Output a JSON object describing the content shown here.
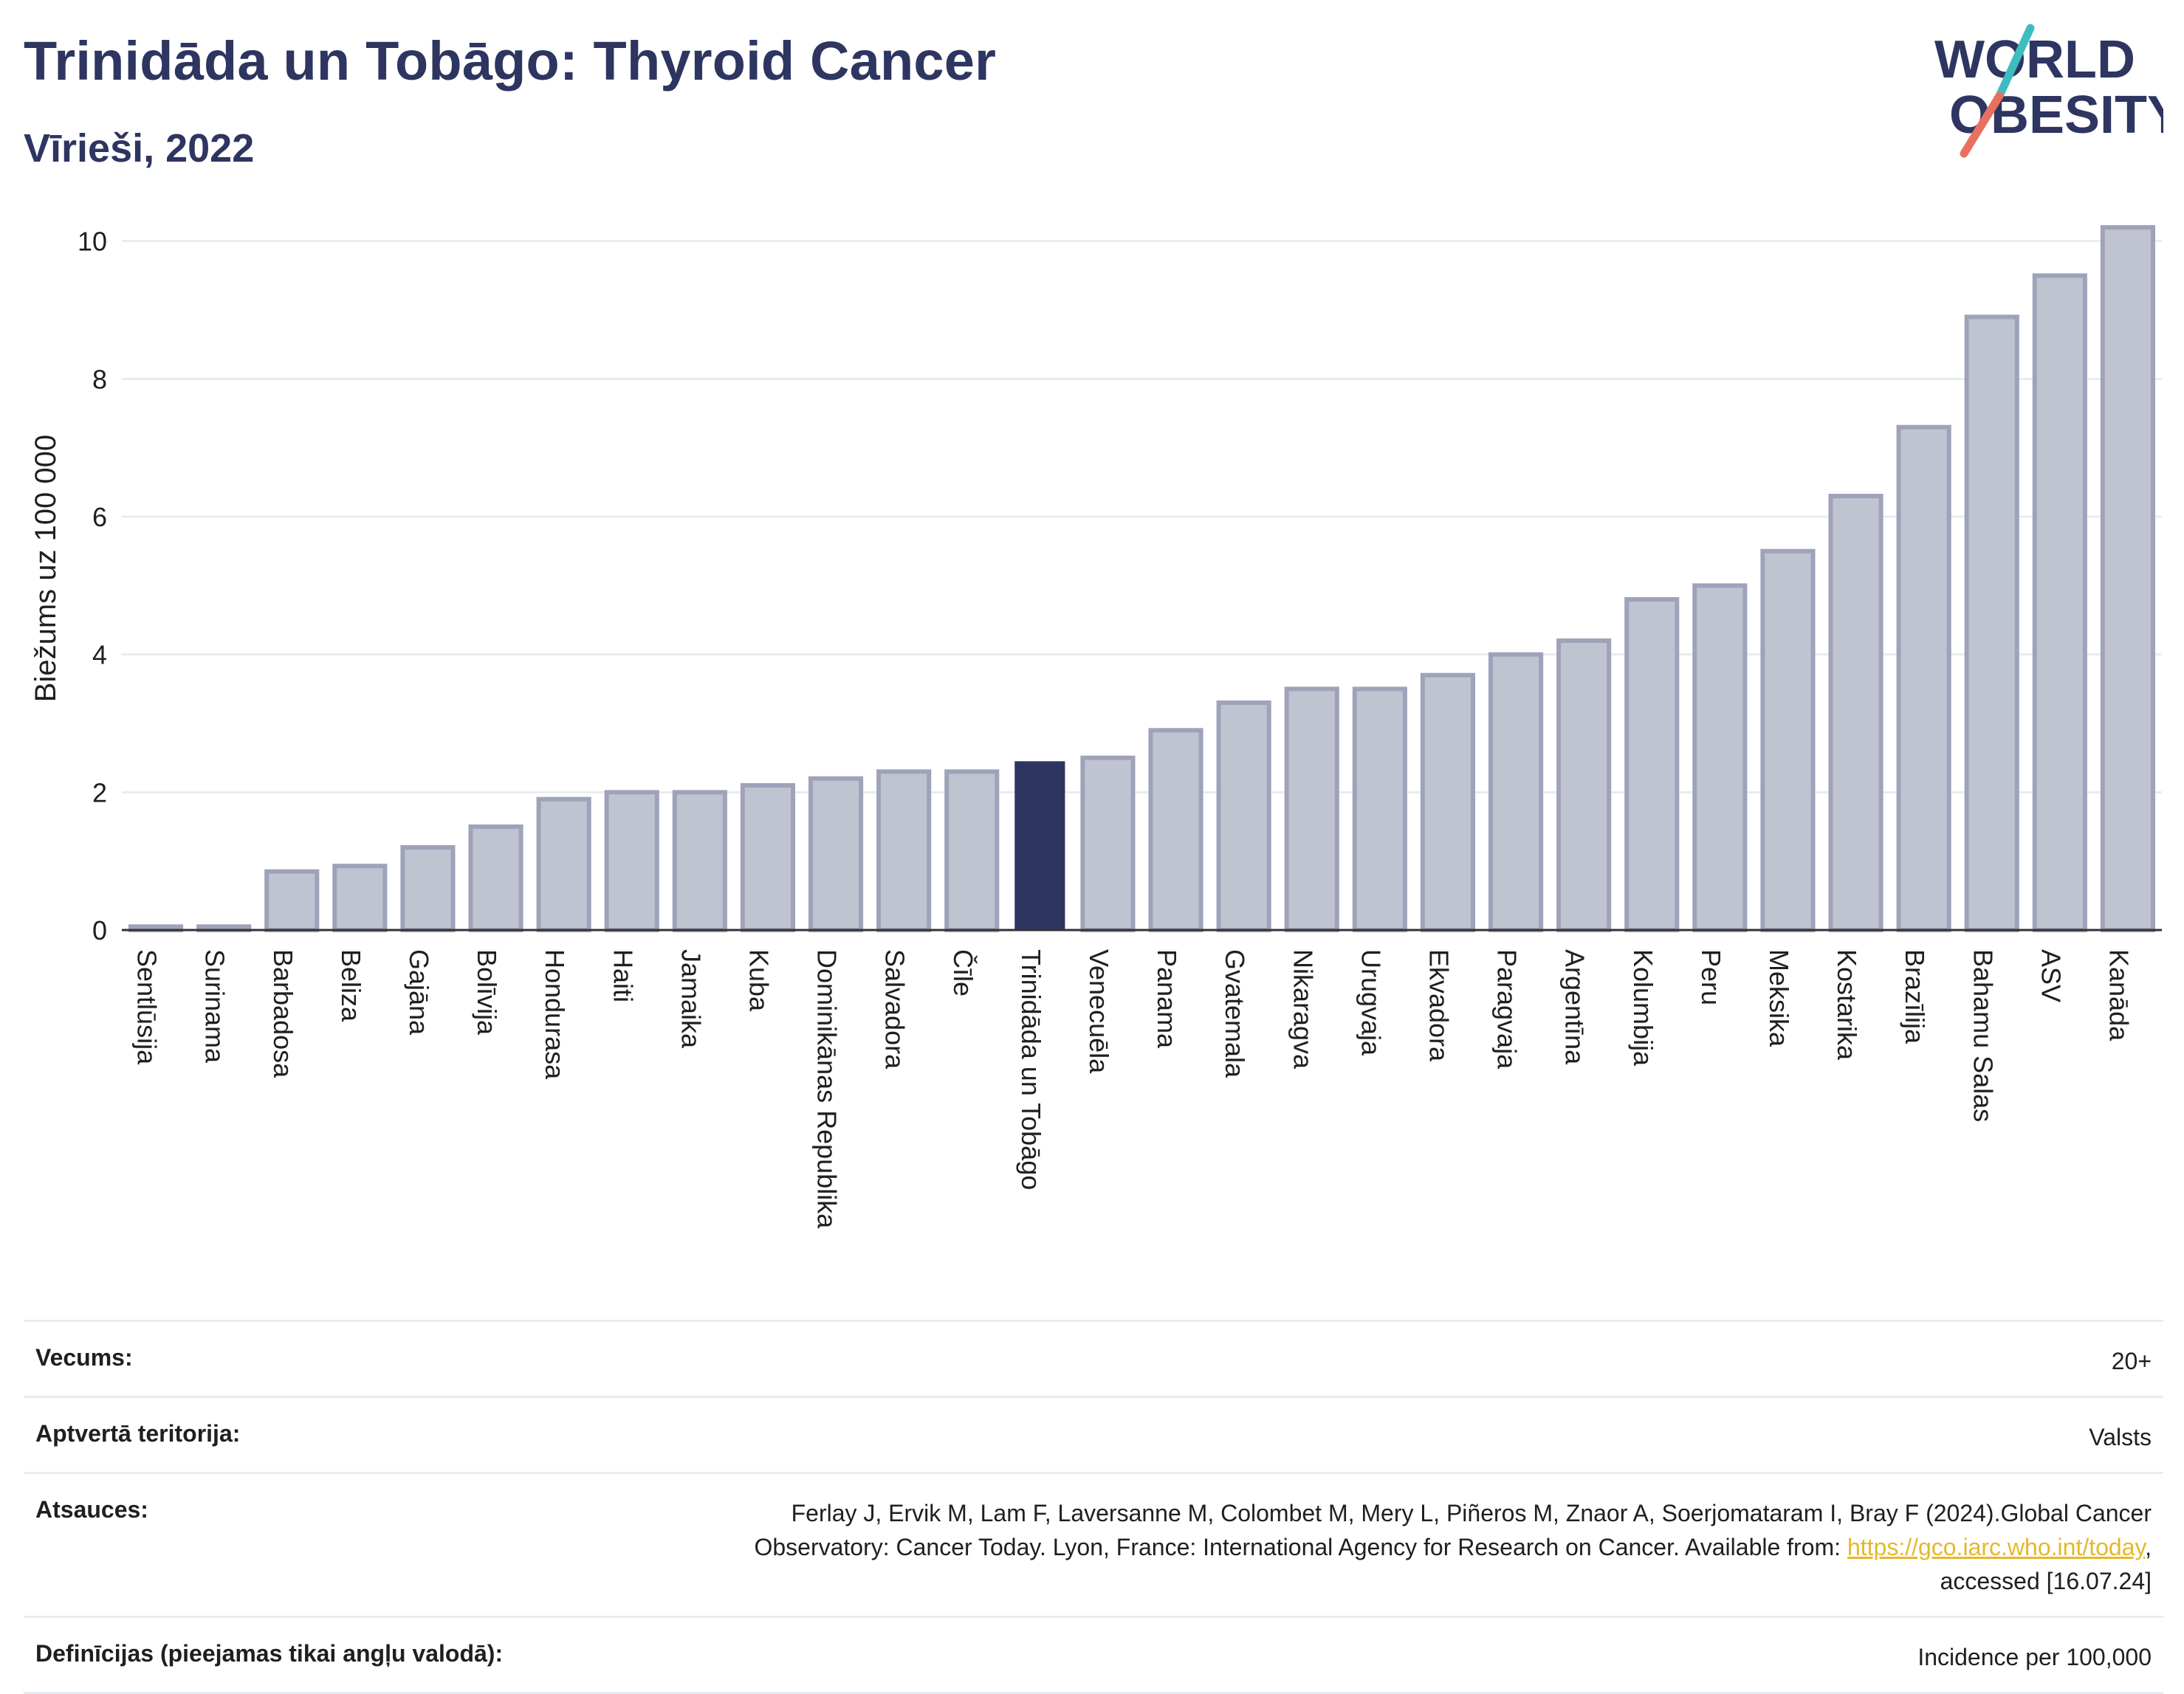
{
  "header": {
    "title": "Trinidāda un Tobāgo: Thyroid Cancer",
    "subtitle": "Vīrieši, 2022"
  },
  "logo": {
    "line1": "WORLD",
    "line2": "OBESITY",
    "icon": "world-obesity-logo"
  },
  "colors": {
    "highlight": "#2d3560",
    "bar_fill": "#c0c3d0",
    "bar_stroke": "#9ea3ba",
    "grid": "#e8ecf1",
    "axis": "#333333"
  },
  "chart_data": {
    "type": "bar",
    "title": "Trinidāda un Tobāgo: Thyroid Cancer",
    "subtitle": "Vīrieši, 2022",
    "ylabel": "Biežums uz 100 000",
    "xlabel": "",
    "ylim": [
      0,
      10.5
    ],
    "yticks": [
      0,
      2,
      4,
      6,
      8,
      10
    ],
    "grid": true,
    "highlight": "Trinidāda un Tobāgo",
    "categories": [
      "Sentlūsija",
      "Surinama",
      "Barbadosa",
      "Beliza",
      "Gajāna",
      "Bolīvija",
      "Hondurasa",
      "Haiti",
      "Jamaika",
      "Kuba",
      "Dominikānas Republika",
      "Salvadora",
      "Čīle",
      "Trinidāda un Tobāgo",
      "Venecuēla",
      "Panama",
      "Gvatemala",
      "Nikaragva",
      "Urugvaja",
      "Ekvadora",
      "Paragvaja",
      "Argentīna",
      "Kolumbija",
      "Peru",
      "Meksika",
      "Kostarika",
      "Brazīlija",
      "Bahamu Salas",
      "ASV",
      "Kanāda"
    ],
    "values": [
      0.05,
      0.05,
      0.85,
      0.93,
      1.2,
      1.5,
      1.9,
      2.0,
      2.0,
      2.1,
      2.2,
      2.3,
      2.3,
      2.45,
      2.5,
      2.9,
      3.3,
      3.5,
      3.5,
      3.7,
      4.0,
      4.2,
      4.8,
      5.0,
      5.5,
      6.3,
      7.3,
      8.9,
      9.5,
      10.2
    ]
  },
  "info": {
    "age_label": "Vecums:",
    "age_value": "20+",
    "territory_label": "Aptvertā teritorija:",
    "territory_value": "Valsts",
    "refs_label": "Atsauces:",
    "refs_line1": "Ferlay J, Ervik M, Lam F, Laversanne M, Colombet M, Mery L, Piñeros M, Znaor A, Soerjomataram I, Bray F (2024).Global Cancer",
    "refs_line2": "Observatory: Cancer Today. Lyon, France: International Agency for Research on Cancer. Available from:",
    "refs_link": "https://gco.iarc.who.int/today",
    "refs_line3": "accessed [16.07.24]",
    "defs_label": "Definīcijas (pieejamas tikai angļu valodā):",
    "defs_value": "Incidence per 100,000"
  }
}
